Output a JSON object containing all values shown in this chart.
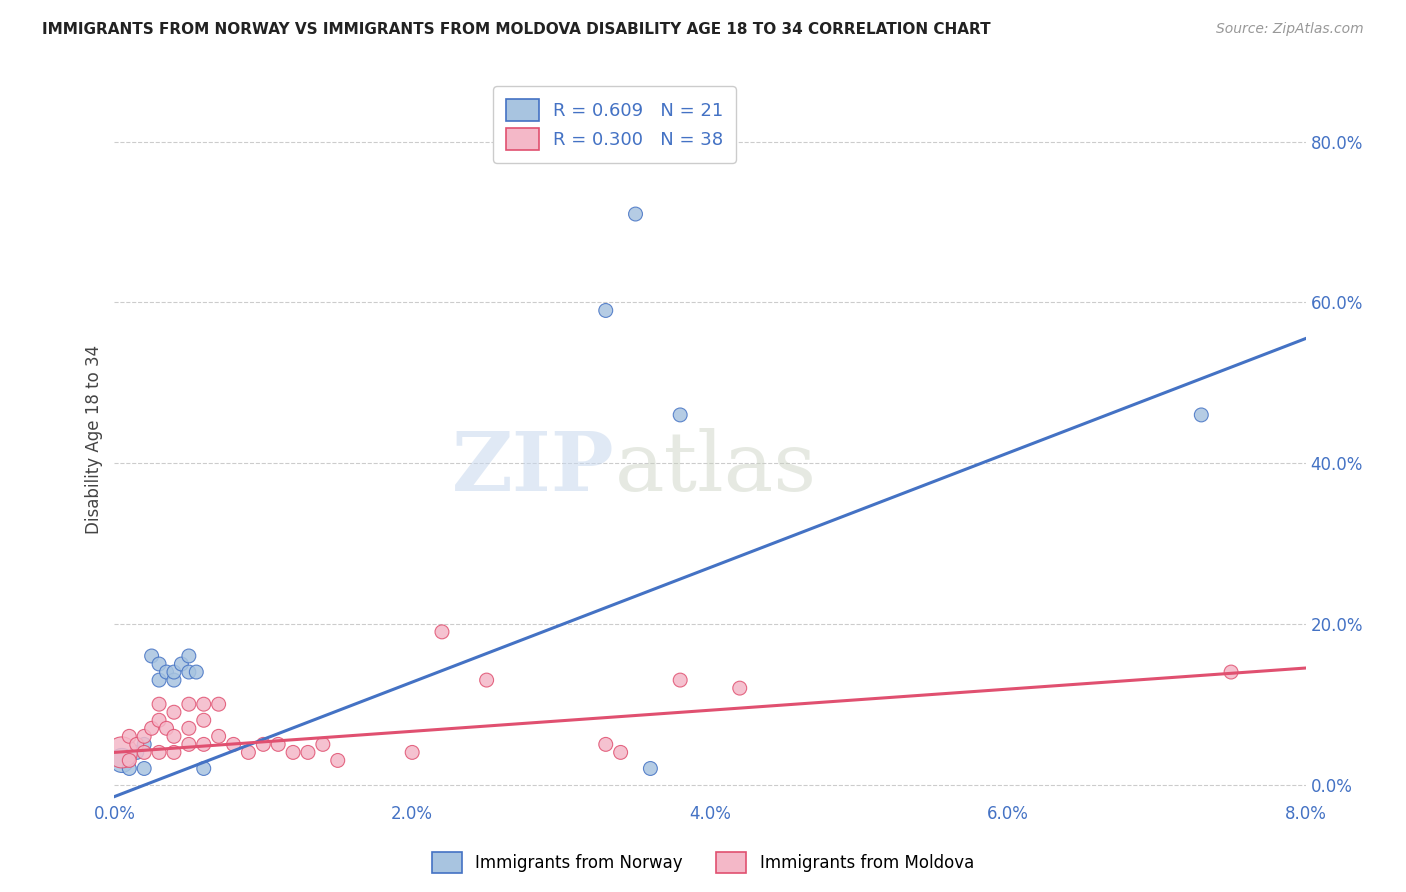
{
  "title": "IMMIGRANTS FROM NORWAY VS IMMIGRANTS FROM MOLDOVA DISABILITY AGE 18 TO 34 CORRELATION CHART",
  "source": "Source: ZipAtlas.com",
  "ylabel": "Disability Age 18 to 34",
  "xlim": [
    0.0,
    0.08
  ],
  "ylim": [
    -0.02,
    0.88
  ],
  "xticks": [
    0.0,
    0.02,
    0.04,
    0.06,
    0.08
  ],
  "yticks": [
    0.0,
    0.2,
    0.4,
    0.6,
    0.8
  ],
  "norway_R": 0.609,
  "norway_N": 21,
  "moldova_R": 0.3,
  "moldova_N": 38,
  "norway_color": "#a8c4e0",
  "moldova_color": "#f4b8c8",
  "norway_line_color": "#4472c4",
  "moldova_line_color": "#e05070",
  "watermark_zip": "ZIP",
  "watermark_atlas": "atlas",
  "norway_x": [
    0.0005,
    0.001,
    0.0015,
    0.002,
    0.002,
    0.0025,
    0.003,
    0.003,
    0.0035,
    0.004,
    0.004,
    0.0045,
    0.005,
    0.005,
    0.0055,
    0.006,
    0.033,
    0.035,
    0.038,
    0.073,
    0.036
  ],
  "norway_y": [
    0.03,
    0.02,
    0.04,
    0.02,
    0.05,
    0.16,
    0.13,
    0.15,
    0.14,
    0.13,
    0.14,
    0.15,
    0.14,
    0.16,
    0.14,
    0.02,
    0.59,
    0.71,
    0.46,
    0.46,
    0.02
  ],
  "moldova_x": [
    0.0005,
    0.001,
    0.001,
    0.0015,
    0.002,
    0.002,
    0.0025,
    0.003,
    0.003,
    0.003,
    0.0035,
    0.004,
    0.004,
    0.004,
    0.005,
    0.005,
    0.005,
    0.006,
    0.006,
    0.006,
    0.007,
    0.007,
    0.008,
    0.009,
    0.01,
    0.011,
    0.012,
    0.013,
    0.014,
    0.015,
    0.02,
    0.022,
    0.025,
    0.033,
    0.034,
    0.038,
    0.042,
    0.075
  ],
  "moldova_y": [
    0.04,
    0.03,
    0.06,
    0.05,
    0.04,
    0.06,
    0.07,
    0.04,
    0.08,
    0.1,
    0.07,
    0.04,
    0.06,
    0.09,
    0.05,
    0.07,
    0.1,
    0.05,
    0.08,
    0.1,
    0.06,
    0.1,
    0.05,
    0.04,
    0.05,
    0.05,
    0.04,
    0.04,
    0.05,
    0.03,
    0.04,
    0.19,
    0.13,
    0.05,
    0.04,
    0.13,
    0.12,
    0.14
  ],
  "norway_pt_sizes": [
    300,
    100,
    100,
    100,
    100,
    100,
    100,
    100,
    100,
    100,
    100,
    100,
    100,
    100,
    100,
    100,
    100,
    100,
    100,
    100,
    100
  ],
  "moldova_pt_sizes": [
    500,
    100,
    100,
    100,
    100,
    100,
    100,
    100,
    100,
    100,
    100,
    100,
    100,
    100,
    100,
    100,
    100,
    100,
    100,
    100,
    100,
    100,
    100,
    100,
    100,
    100,
    100,
    100,
    100,
    100,
    100,
    100,
    100,
    100,
    100,
    100,
    100,
    100
  ],
  "norway_line_x": [
    0.0,
    0.08
  ],
  "norway_line_y": [
    -0.015,
    0.555
  ],
  "moldova_line_x": [
    0.0,
    0.08
  ],
  "moldova_line_y": [
    0.04,
    0.145
  ]
}
